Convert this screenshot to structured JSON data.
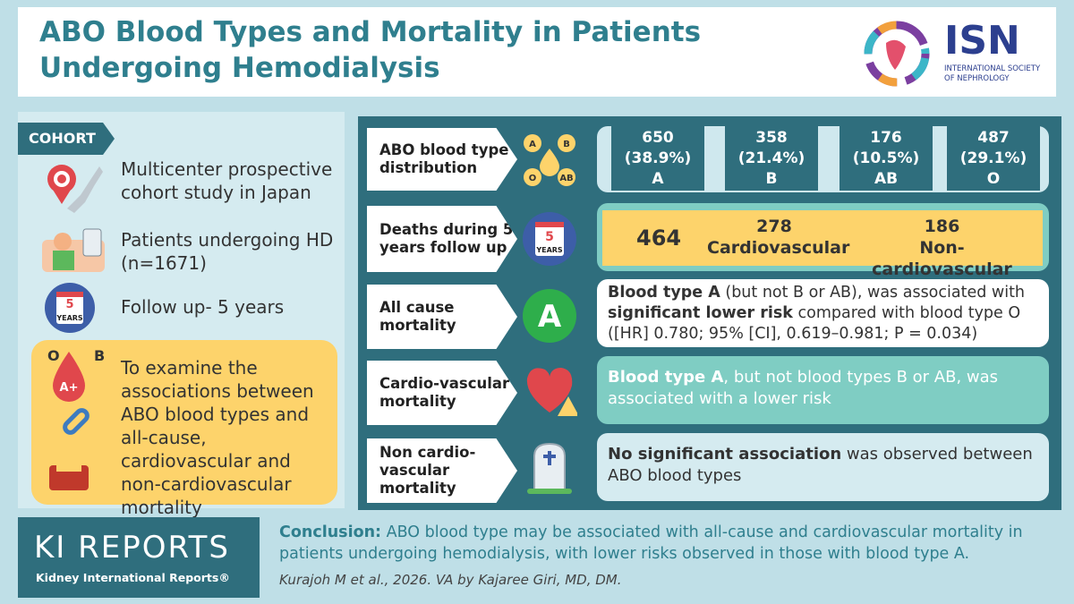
{
  "header": {
    "title": "ABO Blood Types and Mortality in Patients Undergoing Hemodialysis",
    "logo_name": "ISN",
    "logo_subtitle": "INTERNATIONAL SOCIETY OF NEPHROLOGY"
  },
  "cohort": {
    "label": "COHORT",
    "items": [
      "Multicenter prospective cohort study in Japan",
      "Patients undergoing HD (n=1671)",
      "Follow up- 5 years"
    ],
    "calendar_number": "5",
    "calendar_text": "YEARS",
    "aim": "To examine the associations between ABO blood types and all-cause, cardiovascular and non-cardiovascular mortality",
    "aim_icon_letters": [
      "O",
      "B",
      "A+"
    ]
  },
  "rows": [
    {
      "label": "ABO blood type distribution",
      "icon_letters": [
        "A",
        "B",
        "O",
        "AB"
      ],
      "distribution": [
        {
          "count": 650,
          "percent": "(38.9%)",
          "type": "A"
        },
        {
          "count": 358,
          "percent": "(21.4%)",
          "type": "B"
        },
        {
          "count": 176,
          "percent": "(10.5%)",
          "type": "AB"
        },
        {
          "count": 487,
          "percent": "(29.1%)",
          "type": "O"
        }
      ]
    },
    {
      "label": "Deaths during 5 years follow up",
      "icon_number": "5",
      "icon_text": "YEARS",
      "total": 464,
      "breakdown": [
        {
          "count": 278,
          "name": "Cardiovascular"
        },
        {
          "count": 186,
          "name": "Non-cardiovascular"
        }
      ]
    },
    {
      "label": "All cause mortality",
      "icon_letter": "A",
      "parts": [
        {
          "text": "Blood type A",
          "bold": true
        },
        {
          "text": " (but not B or AB), was associated with ",
          "bold": false
        },
        {
          "text": "significant lower risk",
          "bold": true
        },
        {
          "text": " compared with blood type O ([HR] 0.780; 95% [CI], 0.619–0.981; P = 0.034)",
          "bold": false
        }
      ]
    },
    {
      "label": "Cardio-vascular mortality",
      "parts": [
        {
          "text": "Blood type A",
          "bold": true
        },
        {
          "text": ", but not blood types B or AB, was associated with a lower risk",
          "bold": false
        }
      ]
    },
    {
      "label": "Non cardio-vascular mortality",
      "parts": [
        {
          "text": "No significant association",
          "bold": true
        },
        {
          "text": " was observed between ABO blood types",
          "bold": false
        }
      ]
    }
  ],
  "footer": {
    "journal": "KI REPORTS",
    "journal_full": "Kidney International Reports®",
    "conclusion_label": "Conclusion:",
    "conclusion": " ABO blood type may be associated with all-cause and cardiovascular mortality in patients undergoing hemodialysis, with lower risks observed in those with blood type A.",
    "citation": "Kurajoh M et al., 2026. VA by Kajaree Giri, MD, DM."
  }
}
